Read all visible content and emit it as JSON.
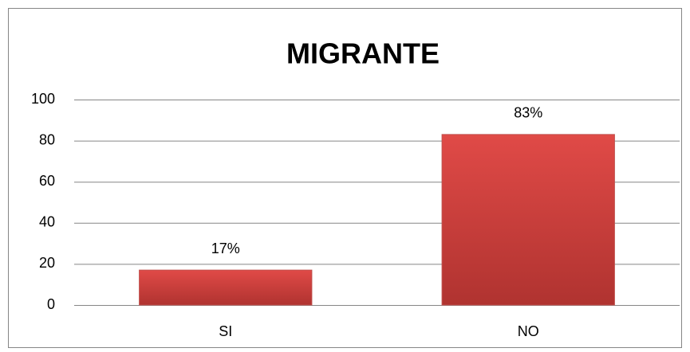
{
  "chart_data": {
    "type": "bar",
    "title": "MIGRANTE",
    "categories": [
      "SI",
      "NO"
    ],
    "values": [
      17,
      83
    ],
    "value_labels": [
      "17%",
      "83%"
    ],
    "color": "#c0504d",
    "ylim": [
      0,
      100
    ],
    "yticks": [
      0,
      20,
      40,
      60,
      80,
      100
    ],
    "grid": true
  }
}
